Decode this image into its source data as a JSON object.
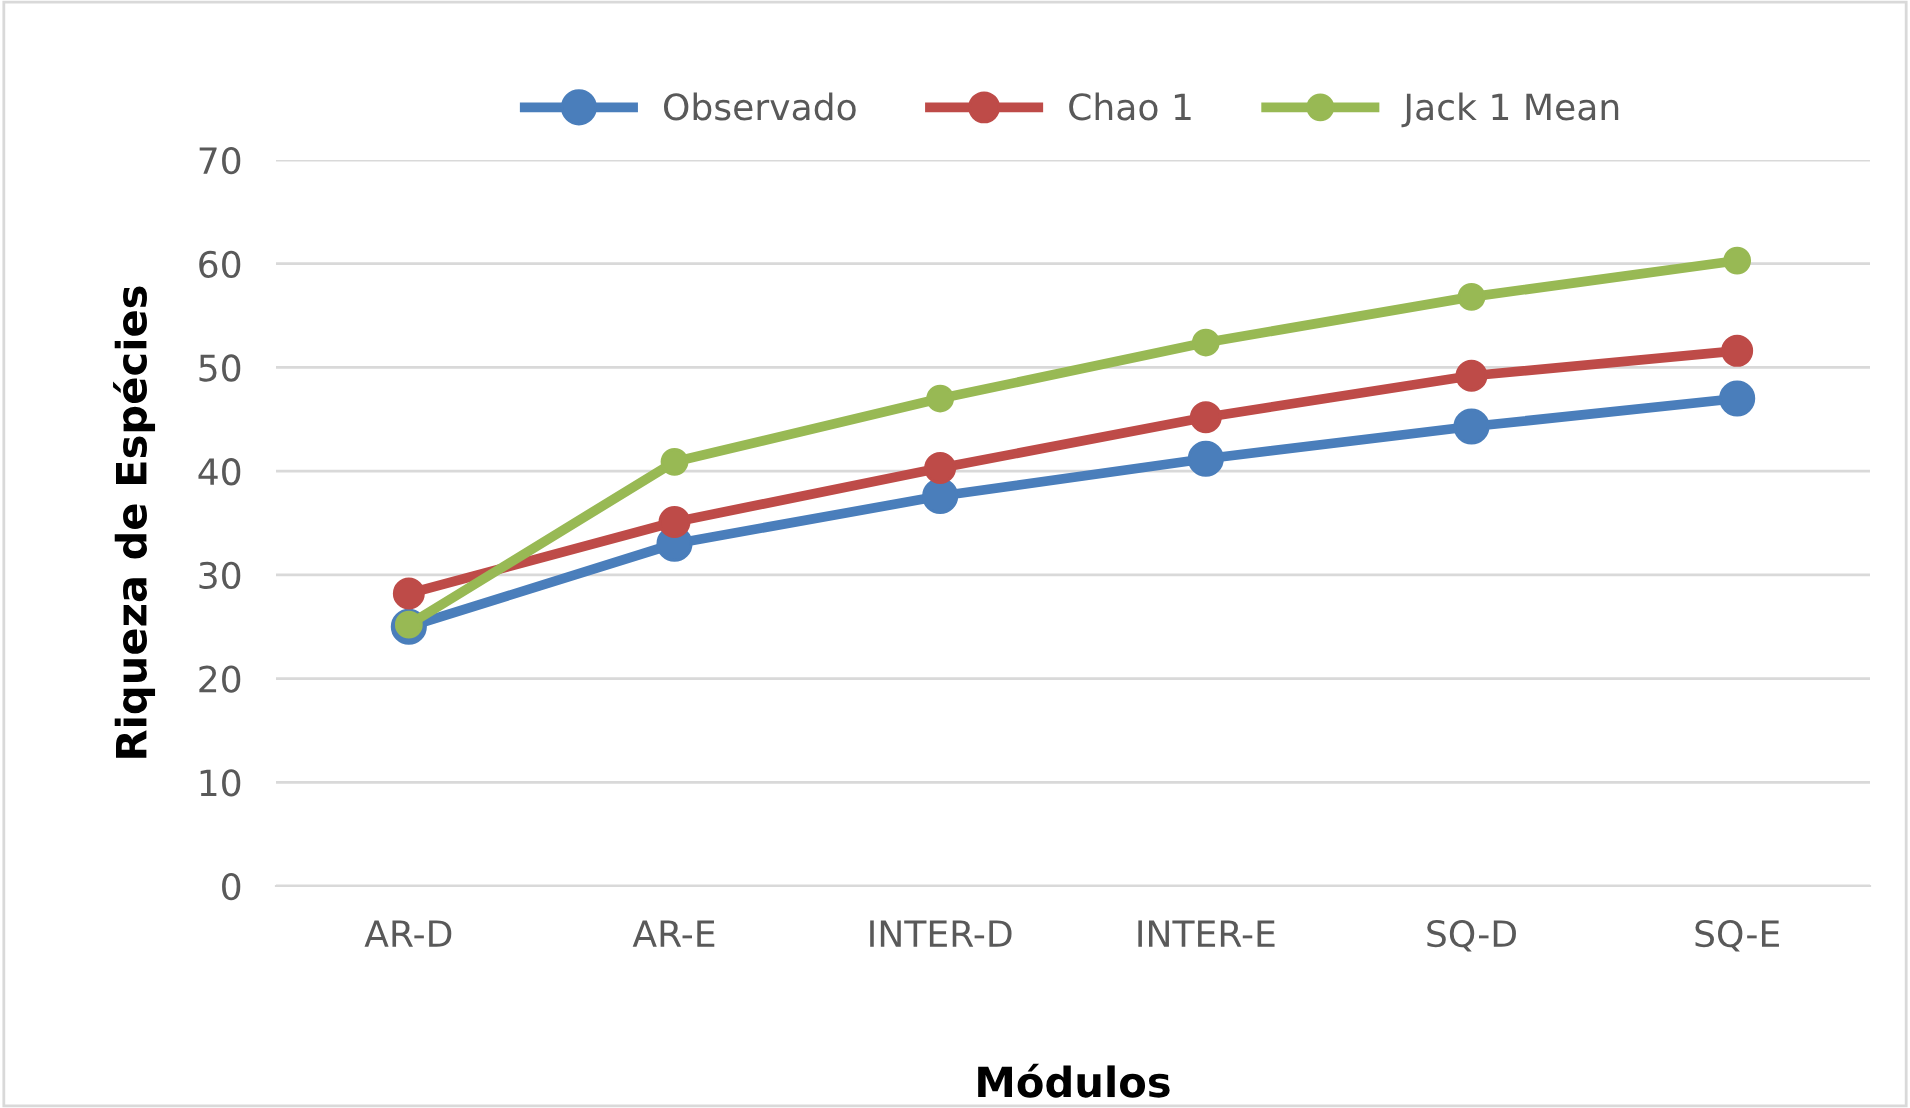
{
  "chart_data": {
    "type": "line",
    "xlabel": "Módulos",
    "ylabel": "Riqueza de Espécies",
    "categories": [
      "AR-D",
      "AR-E",
      "INTER-D",
      "INTER-E",
      "SQ-D",
      "SQ-E"
    ],
    "series": [
      {
        "name": "Observado",
        "color": "#4a7ebb",
        "values": [
          25,
          33,
          37.6,
          41.2,
          44.3,
          47
        ]
      },
      {
        "name": "Chao 1",
        "color": "#be4b48",
        "values": [
          28.2,
          35.1,
          40.3,
          45.2,
          49.2,
          51.6
        ]
      },
      {
        "name": "Jack 1 Mean",
        "color": "#98b954",
        "values": [
          25.2,
          40.9,
          47,
          52.4,
          56.8,
          60.3
        ]
      }
    ],
    "ylim": [
      0,
      70
    ],
    "yticks": [
      0,
      10,
      20,
      30,
      40,
      50,
      60,
      70
    ],
    "grid": "y",
    "legend": "top",
    "marker": "circle",
    "line_style": "solid"
  }
}
